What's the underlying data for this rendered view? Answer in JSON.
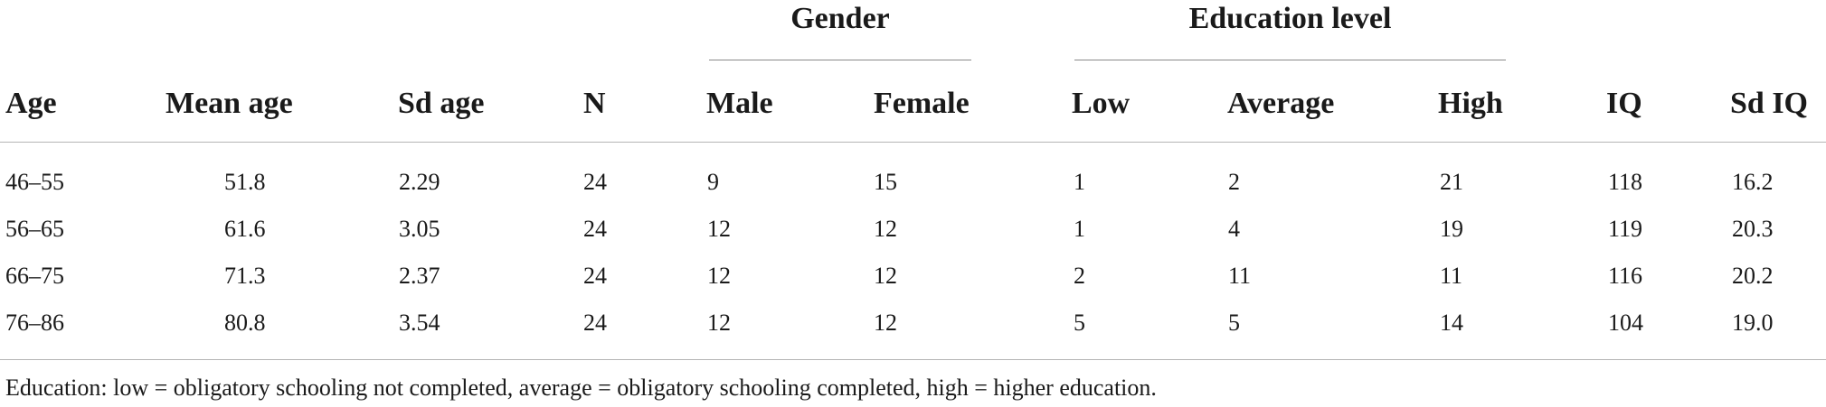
{
  "groups": {
    "gender": "Gender",
    "education": "Education level"
  },
  "headers": {
    "age": "Age",
    "mean_age": "Mean age",
    "sd_age": "Sd age",
    "n": "N",
    "male": "Male",
    "female": "Female",
    "low": "Low",
    "average": "Average",
    "high": "High",
    "iq": "IQ",
    "sd_iq": "Sd IQ"
  },
  "rows": [
    {
      "age": "46–55",
      "mean_age": "51.8",
      "sd_age": "2.29",
      "n": "24",
      "male": "9",
      "female": "15",
      "low": "1",
      "average": "2",
      "high": "21",
      "iq": "118",
      "sd_iq": "16.2"
    },
    {
      "age": "56–65",
      "mean_age": "61.6",
      "sd_age": "3.05",
      "n": "24",
      "male": "12",
      "female": "12",
      "low": "1",
      "average": "4",
      "high": "19",
      "iq": "119",
      "sd_iq": "20.3"
    },
    {
      "age": "66–75",
      "mean_age": "71.3",
      "sd_age": "2.37",
      "n": "24",
      "male": "12",
      "female": "12",
      "low": "2",
      "average": "11",
      "high": "11",
      "iq": "116",
      "sd_iq": "20.2"
    },
    {
      "age": "76–86",
      "mean_age": "80.8",
      "sd_age": "3.54",
      "n": "24",
      "male": "12",
      "female": "12",
      "low": "5",
      "average": "5",
      "high": "14",
      "iq": "104",
      "sd_iq": "19.0"
    }
  ],
  "footnote": "Education: low = obligatory schooling not completed, average = obligatory schooling completed, high = higher education."
}
